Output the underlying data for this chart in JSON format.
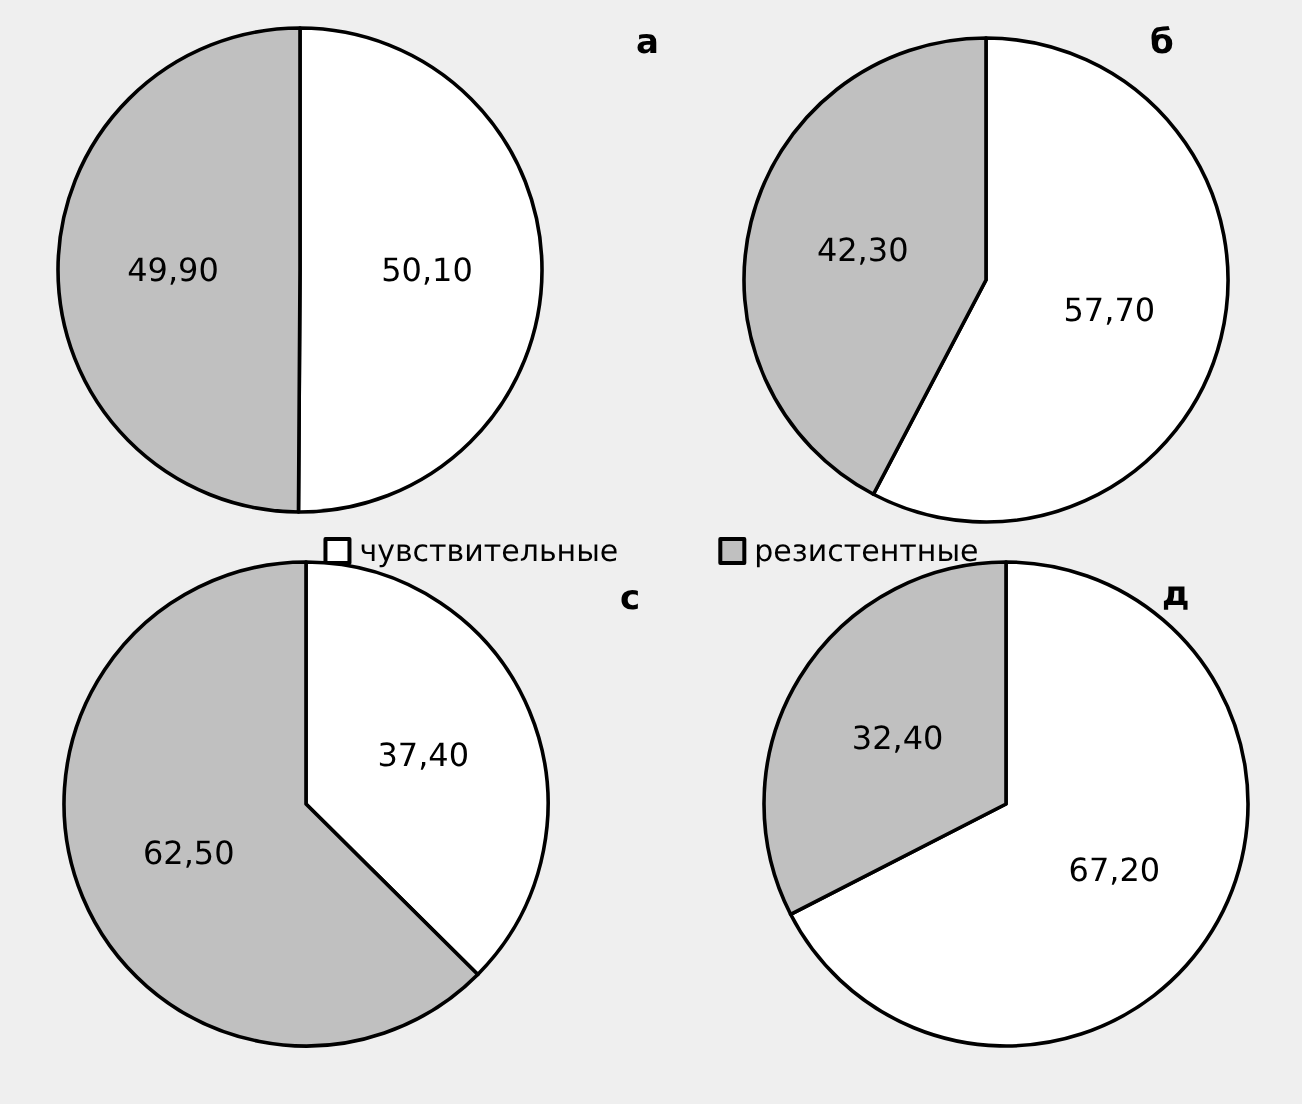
{
  "chart_data": [
    {
      "type": "pie",
      "title": "а",
      "categories": [
        "чувствительные",
        "резистентные"
      ],
      "values": [
        50.1,
        49.9
      ],
      "colors": [
        "#ffffff",
        "#c0c0c0"
      ],
      "value_labels": [
        "50,10",
        "49,90"
      ],
      "legend": "bottom"
    },
    {
      "type": "pie",
      "title": "б",
      "categories": [
        null,
        null
      ],
      "values": [
        57.7,
        42.3
      ],
      "colors": [
        "#ffffff",
        "#c0c0c0"
      ],
      "value_labels": [
        "57,70",
        "42,30"
      ]
    },
    {
      "type": "pie",
      "title": "с",
      "categories": [
        null,
        null
      ],
      "values": [
        37.4,
        62.5
      ],
      "colors": [
        "#ffffff",
        "#c0c0c0"
      ],
      "value_labels": [
        "37,40",
        "62,50"
      ]
    },
    {
      "type": "pie",
      "title": "д",
      "categories": [
        null,
        null
      ],
      "values": [
        67.2,
        32.4
      ],
      "colors": [
        "#ffffff",
        "#c0c0c0"
      ],
      "value_labels": [
        "67,20",
        "32,40"
      ]
    }
  ]
}
